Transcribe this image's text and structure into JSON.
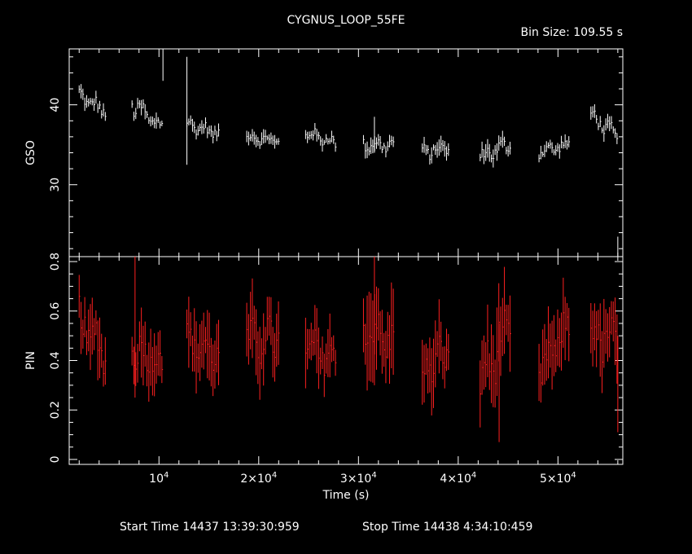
{
  "chart_data": {
    "type": "line",
    "title": "CYGNUS_LOOP_55FE",
    "subtitle": "Bin Size: 109.55 s",
    "xlabel": "Time (s)",
    "xlim": [
      1000,
      56500
    ],
    "x_ticks": [
      {
        "value": 10000,
        "mantissa": "",
        "exponent": "4"
      },
      {
        "value": 20000,
        "mantissa": "2×",
        "exponent": "4"
      },
      {
        "value": 30000,
        "mantissa": "3×",
        "exponent": "4"
      },
      {
        "value": 40000,
        "mantissa": "4×",
        "exponent": "4"
      },
      {
        "value": 50000,
        "mantissa": "5×",
        "exponent": "4"
      }
    ],
    "footer": {
      "start": "Start Time 14437 13:39:30:959",
      "stop": "Stop Time 14438  4:34:10:459"
    },
    "panels": [
      {
        "name": "GSO",
        "ylabel": "GSO",
        "ylim": [
          21.0,
          47.0
        ],
        "y_ticks": [
          30,
          40
        ],
        "minor_step": 2,
        "color": "#ffffff",
        "err_scale": 0.025,
        "segments": [
          {
            "x": [
              2000,
              4800
            ],
            "level": [
              41.2,
              39.0
            ],
            "amp": 0.9,
            "err": 0.6
          },
          {
            "x": [
              7300,
              10300
            ],
            "level": [
              40.0,
              37.2
            ],
            "amp": 1.1,
            "err": 0.7
          },
          {
            "x": [
              12800,
              16000
            ],
            "level": [
              37.6,
              36.4
            ],
            "amp": 0.7,
            "err": 0.6
          },
          {
            "x": [
              18800,
              22000
            ],
            "level": [
              36.0,
              35.5
            ],
            "amp": 0.6,
            "err": 0.6
          },
          {
            "x": [
              24700,
              27800
            ],
            "level": [
              36.5,
              35.2
            ],
            "amp": 0.7,
            "err": 0.6
          },
          {
            "x": [
              30500,
              33600
            ],
            "level": [
              35.0,
              35.0
            ],
            "amp": 0.8,
            "err": 0.7
          },
          {
            "x": [
              36400,
              39100
            ],
            "level": [
              34.0,
              34.7
            ],
            "amp": 0.8,
            "err": 0.7
          },
          {
            "x": [
              42200,
              45300
            ],
            "level": [
              33.5,
              35.2
            ],
            "amp": 0.9,
            "err": 0.8
          },
          {
            "x": [
              48100,
              51200
            ],
            "level": [
              34.2,
              35.0
            ],
            "amp": 0.7,
            "err": 0.6
          },
          {
            "x": [
              53300,
              56100
            ],
            "level": [
              38.8,
              35.8
            ],
            "amp": 0.9,
            "err": 0.7
          }
        ],
        "spikes": [
          {
            "x": 10400,
            "lo": 43.0,
            "hi": 47.0
          },
          {
            "x": 12800,
            "lo": 32.5,
            "hi": 46.0
          },
          {
            "x": 31600,
            "lo": 34.0,
            "hi": 38.5
          },
          {
            "x": 56000,
            "lo": 21.0,
            "hi": 23.5
          }
        ]
      },
      {
        "name": "PIN",
        "ylabel": "PIN",
        "ylim": [
          -0.02,
          0.82
        ],
        "y_ticks": [
          0,
          0.2,
          0.4,
          0.6,
          0.8
        ],
        "minor_step": 0.05,
        "color": "#ff2020",
        "err_scale": 0.02,
        "segments": [
          {
            "x": [
              2000,
              4800
            ],
            "level": [
              0.56,
              0.42
            ],
            "amp": 0.08,
            "err": 0.09
          },
          {
            "x": [
              7300,
              10300
            ],
            "level": [
              0.45,
              0.4
            ],
            "amp": 0.07,
            "err": 0.1
          },
          {
            "x": [
              12800,
              16000
            ],
            "level": [
              0.48,
              0.42
            ],
            "amp": 0.06,
            "err": 0.1
          },
          {
            "x": [
              18800,
              22000
            ],
            "level": [
              0.47,
              0.5
            ],
            "amp": 0.08,
            "err": 0.11
          },
          {
            "x": [
              24700,
              27800
            ],
            "level": [
              0.45,
              0.4
            ],
            "amp": 0.07,
            "err": 0.1
          },
          {
            "x": [
              30500,
              33600
            ],
            "level": [
              0.55,
              0.45
            ],
            "amp": 0.08,
            "err": 0.13
          },
          {
            "x": [
              36400,
              39100
            ],
            "level": [
              0.35,
              0.45
            ],
            "amp": 0.07,
            "err": 0.1
          },
          {
            "x": [
              42200,
              45300
            ],
            "level": [
              0.32,
              0.55
            ],
            "amp": 0.1,
            "err": 0.12
          },
          {
            "x": [
              48100,
              51200
            ],
            "level": [
              0.35,
              0.55
            ],
            "amp": 0.07,
            "err": 0.1
          },
          {
            "x": [
              53300,
              56100
            ],
            "level": [
              0.5,
              0.48
            ],
            "amp": 0.08,
            "err": 0.11
          }
        ],
        "spikes": [
          {
            "x": 44100,
            "lo": 0.07,
            "hi": 0.55
          },
          {
            "x": 56000,
            "lo": 0.11,
            "hi": 0.5
          },
          {
            "x": 7600,
            "lo": 0.25,
            "hi": 0.82
          },
          {
            "x": 31600,
            "lo": 0.3,
            "hi": 0.82
          }
        ]
      }
    ]
  }
}
